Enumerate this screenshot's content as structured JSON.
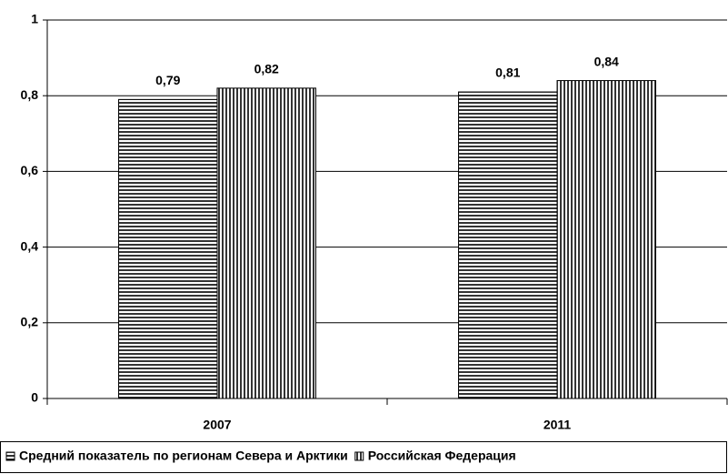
{
  "chart_data": {
    "type": "bar",
    "categories": [
      "2007",
      "2011"
    ],
    "series": [
      {
        "name": "Средний показатель по регионам Севера и Арктики",
        "color": "#000000",
        "pattern": "horizontal",
        "values": [
          0.79,
          0.81
        ],
        "value_labels": [
          "0,79",
          "0,81"
        ]
      },
      {
        "name": "Российская Федерация",
        "color": "#000000",
        "pattern": "vertical",
        "values": [
          0.82,
          0.84
        ],
        "value_labels": [
          "0,82",
          "0,84"
        ]
      }
    ],
    "ylim": [
      0,
      1
    ],
    "yticks": [
      0,
      {
        "value": 0.2,
        "label": "0,2"
      },
      {
        "value": 0.4,
        "label": "0,4"
      },
      {
        "value": 0.6,
        "label": "0,6"
      },
      {
        "value": 0.8,
        "label": "0,8"
      },
      1
    ],
    "grid": true,
    "legend": "bottom"
  }
}
